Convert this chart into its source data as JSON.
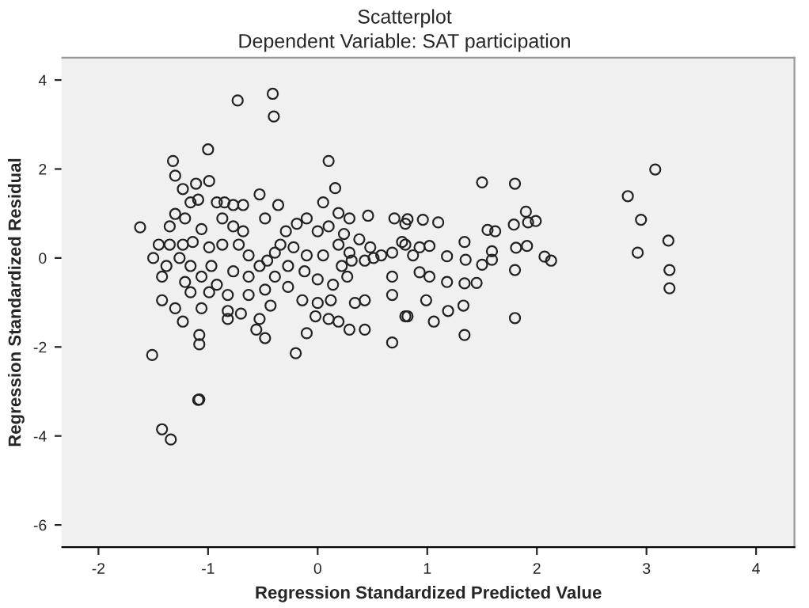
{
  "chart_data": {
    "type": "scatter",
    "title": "Scatterplot",
    "subtitle": "Dependent Variable: SAT participation",
    "xlabel": "Regression Standardized Predicted Value",
    "ylabel": "Regression Standardized Residual",
    "xlim": [
      -2.33,
      4.35
    ],
    "ylim": [
      -6.5,
      4.5
    ],
    "xticks": [
      -2,
      -1,
      0,
      1,
      2,
      3,
      4
    ],
    "yticks": [
      -6,
      -4,
      -2,
      0,
      2,
      4
    ],
    "grid": false,
    "marker": "circle",
    "series": [
      {
        "color": "#222222",
        "x": [
          -0.73,
          -0.41,
          -0.4,
          -1.0,
          -1.32,
          0.1,
          0.16,
          -1.62,
          -1.51,
          -0.2,
          -1.08,
          -1.08,
          -1.08,
          0.68,
          -0.1,
          -0.48,
          -1.42,
          -1.34,
          -1.09,
          3.08,
          2.83,
          2.95,
          2.92,
          3.2,
          3.21,
          3.21,
          1.5,
          1.8,
          1.8,
          1.34,
          1.33,
          1.06,
          1.19,
          0.99,
          0.82,
          1.8,
          2.13,
          2.07,
          1.91,
          1.92,
          1.79,
          1.9,
          1.99,
          1.55,
          1.62,
          1.34,
          1.35,
          1.5,
          1.59,
          1.45,
          1.34,
          1.18,
          0.93,
          1.02,
          1.81,
          0.82,
          0.96,
          1.1,
          0.8,
          0.93,
          1.02,
          0.87,
          1.18,
          1.59,
          -1.3,
          -1.23,
          -1.11,
          -0.99,
          -1.3,
          -1.21,
          -1.35,
          -1.45,
          -1.5,
          -1.38,
          -1.35,
          -1.23,
          -1.14,
          -1.06,
          -1.16,
          -1.09,
          -0.92,
          -0.85,
          -0.77,
          -0.68,
          -0.53,
          -0.36,
          -0.48,
          -0.87,
          -0.77,
          -0.68,
          -0.99,
          -0.87,
          -0.72,
          -0.63,
          -0.97,
          -0.77,
          -0.63,
          -0.53,
          -1.21,
          -1.16,
          -1.42,
          -1.3,
          -1.06,
          -1.23,
          -0.82,
          -0.82,
          -0.7,
          -0.63,
          -0.48,
          -0.43,
          -0.53,
          -0.56,
          -0.39,
          -0.27,
          -0.27,
          -0.29,
          -0.19,
          -0.1,
          0.0,
          -0.34,
          -0.22,
          -0.1,
          0.05,
          -0.12,
          0.0,
          -0.14,
          0.0,
          0.14,
          0.12,
          -0.02,
          0.1,
          0.19,
          0.29,
          0.43,
          0.34,
          0.43,
          0.27,
          0.31,
          0.43,
          0.51,
          0.58,
          0.68,
          0.77,
          0.7,
          0.8,
          0.68,
          0.8,
          0.68,
          0.46,
          0.19,
          0.05,
          0.29,
          0.1,
          0.24,
          0.38,
          0.48,
          0.19,
          0.29,
          0.22,
          -0.39,
          -0.46,
          -0.92,
          -0.82,
          -0.99,
          -1.26,
          -1.16,
          -1.42,
          -1.06
        ],
        "values": [
          3.54,
          3.69,
          3.18,
          2.44,
          2.18,
          2.18,
          1.57,
          0.69,
          -2.18,
          -2.14,
          -1.73,
          -1.94,
          -3.18,
          -1.9,
          -1.69,
          -1.8,
          -3.85,
          -4.08,
          -3.19,
          1.99,
          1.39,
          0.86,
          0.12,
          0.39,
          -0.27,
          -0.68,
          1.7,
          1.67,
          -1.35,
          -1.73,
          -1.07,
          -1.43,
          -1.19,
          -0.95,
          -1.31,
          -0.27,
          -0.06,
          0.03,
          0.27,
          0.8,
          0.75,
          1.04,
          0.83,
          0.63,
          0.6,
          0.36,
          -0.04,
          -0.15,
          0.15,
          -0.56,
          -0.57,
          -0.54,
          -0.32,
          -0.42,
          0.23,
          0.87,
          0.86,
          0.8,
          0.3,
          0.24,
          0.27,
          0.06,
          0.04,
          -0.04,
          1.85,
          1.55,
          1.67,
          1.73,
          0.99,
          0.89,
          0.71,
          0.3,
          0.0,
          -0.18,
          0.3,
          0.3,
          0.36,
          0.65,
          1.25,
          1.31,
          1.25,
          1.25,
          1.19,
          1.19,
          1.43,
          1.19,
          0.89,
          0.89,
          0.71,
          0.6,
          0.24,
          0.3,
          0.3,
          0.06,
          -0.18,
          -0.3,
          -0.42,
          -0.18,
          -0.54,
          -0.77,
          -0.95,
          -1.13,
          -1.13,
          -1.43,
          -1.19,
          -1.37,
          -1.25,
          -0.83,
          -0.71,
          -1.07,
          -1.37,
          -1.61,
          -0.42,
          -0.65,
          -0.18,
          0.6,
          0.77,
          0.89,
          0.6,
          0.3,
          0.24,
          0.06,
          0.06,
          -0.3,
          -0.48,
          -0.95,
          -1.01,
          -0.6,
          -0.95,
          -1.31,
          -1.37,
          -1.43,
          -1.61,
          -1.61,
          -1.01,
          -0.95,
          -0.42,
          -0.06,
          -0.06,
          0.0,
          0.06,
          0.12,
          0.36,
          0.89,
          0.77,
          -0.42,
          -1.31,
          -0.83,
          0.95,
          1.01,
          1.25,
          0.89,
          0.71,
          0.54,
          0.42,
          0.24,
          0.3,
          0.12,
          -0.18,
          0.12,
          -0.06,
          -0.6,
          -0.83,
          -0.77,
          0.0,
          -0.18,
          -0.42,
          -0.42
        ]
      }
    ]
  }
}
